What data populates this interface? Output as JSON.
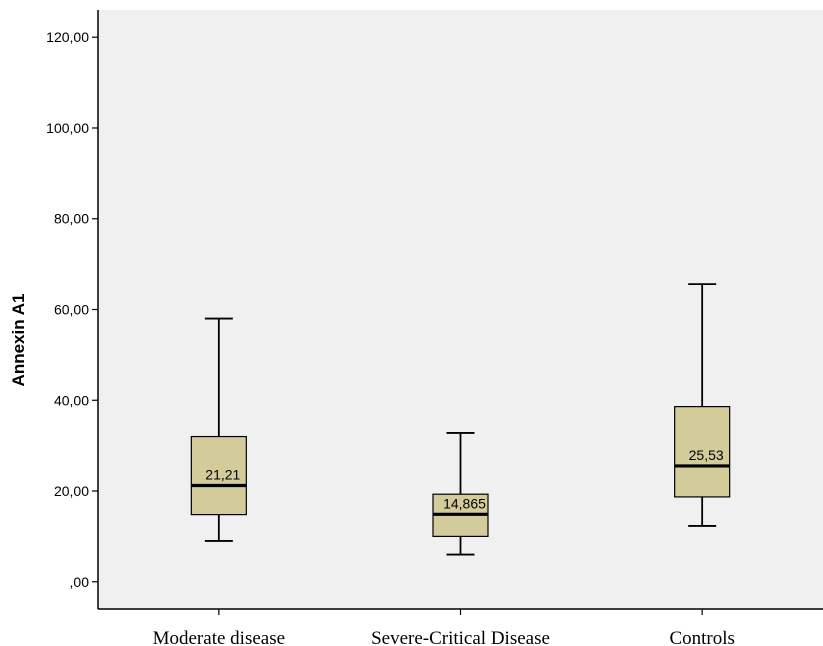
{
  "colors": {
    "background": "#f0f0f0",
    "box_fill": "#d3cc9a",
    "stroke": "#000000"
  },
  "chart_data": {
    "type": "boxplot",
    "ylabel": "Annexin A1",
    "ylim": [
      -6,
      126
    ],
    "yticks": [
      0,
      20,
      40,
      60,
      80,
      100,
      120
    ],
    "ytick_labels": [
      ",00",
      "20,00",
      "40,00",
      "60,00",
      "80,00",
      "100,00",
      "120,00"
    ],
    "grid": false,
    "categories": [
      "Moderate disease",
      "Severe-Critical Disease",
      "Controls"
    ],
    "boxes": [
      {
        "whisker_low": 9.0,
        "q1": 14.8,
        "median": 21.21,
        "q3": 32.0,
        "whisker_high": 58.0,
        "median_label": "21,21"
      },
      {
        "whisker_low": 6.0,
        "q1": 10.0,
        "median": 14.865,
        "q3": 19.3,
        "whisker_high": 32.8,
        "median_label": "14,865"
      },
      {
        "whisker_low": 12.3,
        "q1": 18.7,
        "median": 25.53,
        "q3": 38.6,
        "whisker_high": 65.6,
        "median_label": "25,53"
      }
    ]
  }
}
